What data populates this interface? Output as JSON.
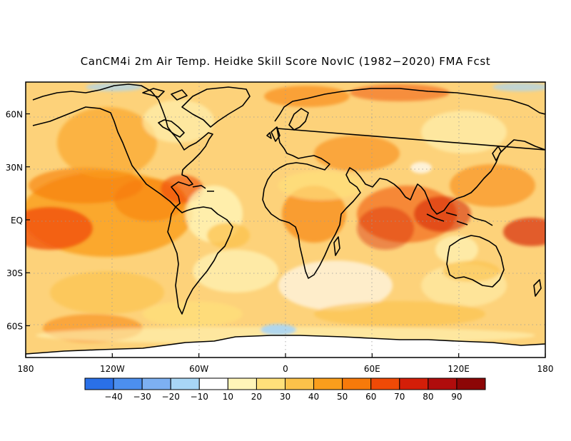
{
  "title": "CanCM4i 2m Air Temp. Heidke Skill Score NovIC (1982−2020) FMA Fcst",
  "map": {
    "lat_labels": [
      "60N",
      "30N",
      "EQ",
      "30S",
      "60S"
    ],
    "lat_values": [
      60,
      30,
      0,
      -30,
      -60
    ],
    "lon_labels": [
      "180",
      "120W",
      "60W",
      "0",
      "60E",
      "120E",
      "180"
    ],
    "lon_values": [
      -180,
      -120,
      -60,
      0,
      60,
      120,
      180
    ],
    "lat_range": [
      -78,
      78
    ],
    "lon_range": [
      -180,
      180
    ],
    "grid": "dotted",
    "coastlines": true
  },
  "colorbar": {
    "labels": [
      "−40",
      "−30",
      "−20",
      "−10",
      "10",
      "20",
      "30",
      "40",
      "50",
      "60",
      "70",
      "80",
      "90"
    ],
    "colors": [
      "#2a70e8",
      "#4c8fee",
      "#7db0f2",
      "#a8d6f6",
      "#ffffff",
      "#fff5b8",
      "#ffe07a",
      "#fcc24a",
      "#fa9e1c",
      "#f77a0a",
      "#f04a06",
      "#d41e08",
      "#b00c0c",
      "#8c0606"
    ]
  }
}
